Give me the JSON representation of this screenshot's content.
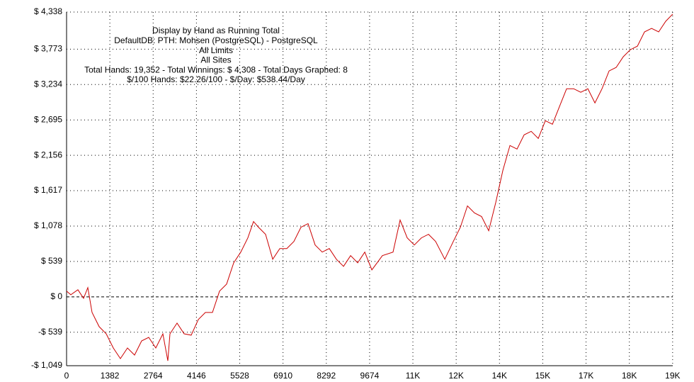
{
  "chart_data": {
    "type": "line",
    "title_lines": [
      "Display by Hand as Running Total",
      "DefaultDB: PTH: Mohsen (PostgreSQL) - PostgreSQL",
      "All Limits",
      "All Sites",
      "Total Hands: 19,352 - Total Winnings: $ 4,308 - Total Days Graphed: 8",
      "$/100 Hands: $22.26/100 - $/Day: $538.44/Day"
    ],
    "xlim": [
      0,
      19352
    ],
    "ylim": [
      -1049,
      4338
    ],
    "xticks": [
      0,
      1382,
      2764,
      4146,
      5528,
      6910,
      8292,
      9674,
      {
        "value": 11056,
        "label": "11K"
      },
      {
        "value": 12438,
        "label": "12K"
      },
      {
        "value": 13820,
        "label": "14K"
      },
      {
        "value": 15202,
        "label": "15K"
      },
      {
        "value": 16584,
        "label": "17K"
      },
      {
        "value": 17966,
        "label": "18K"
      },
      {
        "value": 19348,
        "label": "19K"
      }
    ],
    "yticks": [
      {
        "value": -1049,
        "label": "-$ 1,049"
      },
      {
        "value": -539,
        "label": "-$ 539"
      },
      {
        "value": 0,
        "label": "$ 0"
      },
      {
        "value": 539,
        "label": "$ 539"
      },
      {
        "value": 1078,
        "label": "$ 1,078"
      },
      {
        "value": 1617,
        "label": "$ 1,617"
      },
      {
        "value": 2156,
        "label": "$ 2,156"
      },
      {
        "value": 2695,
        "label": "$ 2,695"
      },
      {
        "value": 3234,
        "label": "$ 3,234"
      },
      {
        "value": 3773,
        "label": "$ 3,773"
      },
      {
        "value": 4338,
        "label": "$ 4,338"
      }
    ],
    "grid": true,
    "series": [
      {
        "color": "#cc0000",
        "x": [
          0,
          136,
          362,
          543,
          678,
          814,
          1040,
          1266,
          1492,
          1718,
          1944,
          2171,
          2397,
          2623,
          2849,
          3075,
          3233,
          3301,
          3527,
          3753,
          3979,
          4205,
          4432,
          4658,
          4884,
          5110,
          5336,
          5562,
          5788,
          5969,
          6127,
          6353,
          6580,
          6806,
          7032,
          7258,
          7484,
          7710,
          7936,
          8162,
          8388,
          8614,
          8841,
          9067,
          9293,
          9519,
          9745,
          10084,
          10423,
          10649,
          10875,
          11102,
          11328,
          11554,
          11780,
          12074,
          12345,
          12571,
          12797,
          13023,
          13249,
          13476,
          13702,
          13928,
          14154,
          14380,
          14606,
          14832,
          15058,
          15284,
          15510,
          15737,
          15963,
          16189,
          16415,
          16641,
          16867,
          17093,
          17319,
          17545,
          17771,
          17998,
          18224,
          18450,
          18676,
          18902,
          19128,
          19352
        ],
        "values": [
          87,
          32,
          108,
          -22,
          141,
          -238,
          -454,
          -563,
          -779,
          -941,
          -779,
          -887,
          -671,
          -617,
          -779,
          -563,
          -974,
          -563,
          -400,
          -563,
          -584,
          -346,
          -238,
          -238,
          87,
          195,
          519,
          682,
          898,
          1147,
          1060,
          952,
          573,
          736,
          736,
          844,
          1060,
          1114,
          790,
          682,
          736,
          573,
          465,
          628,
          519,
          682,
          411,
          628,
          682,
          1169,
          898,
          790,
          898,
          952,
          844,
          573,
          844,
          1060,
          1385,
          1277,
          1223,
          1006,
          1439,
          1926,
          2305,
          2251,
          2467,
          2521,
          2413,
          2683,
          2629,
          2900,
          3170,
          3170,
          3116,
          3170,
          2954,
          3170,
          3441,
          3495,
          3657,
          3765,
          3819,
          4036,
          4090,
          4036,
          4198,
          4308
        ]
      }
    ]
  }
}
